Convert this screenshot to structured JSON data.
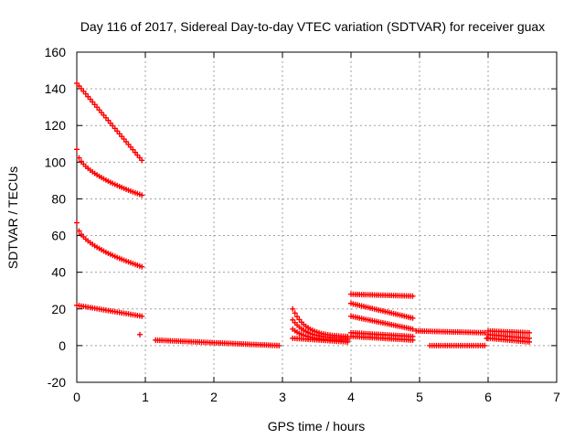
{
  "chart_data": {
    "type": "scatter",
    "title": "Day 116 of 2017, Sidereal Day-to-day VTEC variation (SDTVAR) for receiver guax",
    "xlabel": "GPS time / hours",
    "ylabel": "SDTVAR / TECUs",
    "xlim": [
      0,
      7
    ],
    "ylim": [
      -20,
      160
    ],
    "xticks": [
      "0",
      "1",
      "2",
      "3",
      "4",
      "5",
      "6",
      "7"
    ],
    "yticks": [
      "-20",
      "0",
      "20",
      "40",
      "60",
      "80",
      "100",
      "120",
      "140",
      "160"
    ],
    "grid": true,
    "marker": "+",
    "series_color": "#ff0000",
    "series": [
      {
        "name": "seg-a1",
        "kind": "linear",
        "x0": 0.0,
        "x1": 0.95,
        "y0": 143,
        "y1": 101,
        "n": 30
      },
      {
        "name": "seg-a2",
        "kind": "concave",
        "x0": 0.0,
        "x1": 0.95,
        "y0": 107,
        "y1": 82,
        "n": 30
      },
      {
        "name": "seg-a3",
        "kind": "concave",
        "x0": 0.0,
        "x1": 0.95,
        "y0": 67,
        "y1": 43,
        "n": 30
      },
      {
        "name": "seg-a4",
        "kind": "linear",
        "x0": 0.0,
        "x1": 0.95,
        "y0": 22,
        "y1": 16,
        "n": 30
      },
      {
        "name": "seg-b",
        "kind": "linear",
        "x0": 1.15,
        "x1": 2.95,
        "y0": 3,
        "y1": 0,
        "n": 60
      },
      {
        "name": "seg-c1",
        "kind": "decay",
        "x0": 3.15,
        "x1": 3.95,
        "y0": 20,
        "y1": 5,
        "n": 26
      },
      {
        "name": "seg-c2",
        "kind": "decay",
        "x0": 3.15,
        "x1": 3.95,
        "y0": 14,
        "y1": 4,
        "n": 26
      },
      {
        "name": "seg-c3",
        "kind": "decay",
        "x0": 3.15,
        "x1": 3.95,
        "y0": 9,
        "y1": 3,
        "n": 26
      },
      {
        "name": "seg-c4",
        "kind": "linear",
        "x0": 3.15,
        "x1": 3.95,
        "y0": 4,
        "y1": 2,
        "n": 26
      },
      {
        "name": "seg-d1",
        "kind": "linear",
        "x0": 4.0,
        "x1": 4.9,
        "y0": 28,
        "y1": 27,
        "n": 30
      },
      {
        "name": "seg-d2",
        "kind": "linear",
        "x0": 4.0,
        "x1": 4.9,
        "y0": 23,
        "y1": 15,
        "n": 30
      },
      {
        "name": "seg-d3",
        "kind": "linear",
        "x0": 4.0,
        "x1": 4.9,
        "y0": 16,
        "y1": 9,
        "n": 30
      },
      {
        "name": "seg-d4",
        "kind": "linear",
        "x0": 4.0,
        "x1": 4.9,
        "y0": 7,
        "y1": 5,
        "n": 30
      },
      {
        "name": "seg-d5",
        "kind": "linear",
        "x0": 4.0,
        "x1": 4.9,
        "y0": 5,
        "y1": 3,
        "n": 30
      },
      {
        "name": "seg-e1",
        "kind": "linear",
        "x0": 4.95,
        "x1": 5.95,
        "y0": 8,
        "y1": 7,
        "n": 34
      },
      {
        "name": "seg-e2",
        "kind": "linear",
        "x0": 5.15,
        "x1": 5.95,
        "y0": 0,
        "y1": 0,
        "n": 26
      },
      {
        "name": "seg-f1",
        "kind": "linear",
        "x0": 6.0,
        "x1": 6.6,
        "y0": 8,
        "y1": 7,
        "n": 20
      },
      {
        "name": "seg-f2",
        "kind": "linear",
        "x0": 6.0,
        "x1": 6.6,
        "y0": 6,
        "y1": 4,
        "n": 20
      },
      {
        "name": "seg-f3",
        "kind": "linear",
        "x0": 6.0,
        "x1": 6.6,
        "y0": 4,
        "y1": 2,
        "n": 20
      }
    ],
    "isolated_points": [
      [
        0.92,
        6
      ],
      [
        5.98,
        4
      ]
    ]
  }
}
